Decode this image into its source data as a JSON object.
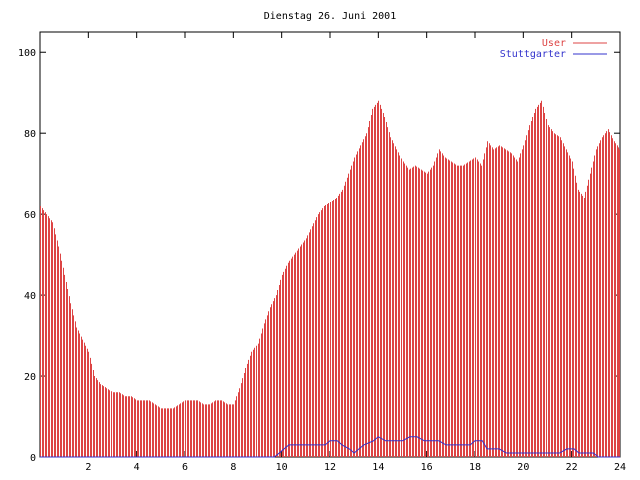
{
  "chart_data": {
    "type": "bar",
    "title": "Dienstag 26. Juni 2001",
    "xlim": [
      0,
      24
    ],
    "ylim": [
      0,
      105
    ],
    "xticks": [
      2,
      4,
      6,
      8,
      10,
      12,
      14,
      16,
      18,
      20,
      22,
      24
    ],
    "yticks": [
      0,
      20,
      40,
      60,
      80,
      100
    ],
    "legend_position": "top-right",
    "colors": {
      "User": "#dd4444",
      "Stuttgarter": "#3333cc"
    },
    "series": [
      {
        "name": "User",
        "style": "impulses",
        "points": [
          [
            0.0,
            62
          ],
          [
            0.25,
            60
          ],
          [
            0.5,
            58
          ],
          [
            0.75,
            52
          ],
          [
            1.0,
            45
          ],
          [
            1.25,
            38
          ],
          [
            1.5,
            32
          ],
          [
            1.75,
            29
          ],
          [
            2.0,
            26
          ],
          [
            2.25,
            20
          ],
          [
            2.5,
            18
          ],
          [
            2.75,
            17
          ],
          [
            3.0,
            16
          ],
          [
            3.25,
            16
          ],
          [
            3.5,
            15
          ],
          [
            3.75,
            15
          ],
          [
            4.0,
            14
          ],
          [
            4.25,
            14
          ],
          [
            4.5,
            14
          ],
          [
            4.75,
            13
          ],
          [
            5.0,
            12
          ],
          [
            5.25,
            12
          ],
          [
            5.5,
            12
          ],
          [
            5.75,
            13
          ],
          [
            6.0,
            14
          ],
          [
            6.25,
            14
          ],
          [
            6.5,
            14
          ],
          [
            6.75,
            13
          ],
          [
            7.0,
            13
          ],
          [
            7.25,
            14
          ],
          [
            7.5,
            14
          ],
          [
            7.75,
            13
          ],
          [
            8.0,
            13
          ],
          [
            8.25,
            17
          ],
          [
            8.5,
            22
          ],
          [
            8.75,
            26
          ],
          [
            9.0,
            28
          ],
          [
            9.25,
            33
          ],
          [
            9.5,
            37
          ],
          [
            9.75,
            40
          ],
          [
            10.0,
            45
          ],
          [
            10.25,
            48
          ],
          [
            10.5,
            50
          ],
          [
            10.75,
            52
          ],
          [
            11.0,
            54
          ],
          [
            11.25,
            57
          ],
          [
            11.5,
            60
          ],
          [
            11.75,
            62
          ],
          [
            12.0,
            63
          ],
          [
            12.25,
            64
          ],
          [
            12.5,
            66
          ],
          [
            12.75,
            70
          ],
          [
            13.0,
            74
          ],
          [
            13.25,
            77
          ],
          [
            13.5,
            80
          ],
          [
            13.75,
            86
          ],
          [
            14.0,
            88
          ],
          [
            14.25,
            84
          ],
          [
            14.5,
            79
          ],
          [
            14.75,
            76
          ],
          [
            15.0,
            73
          ],
          [
            15.25,
            71
          ],
          [
            15.5,
            72
          ],
          [
            15.75,
            71
          ],
          [
            16.0,
            70
          ],
          [
            16.25,
            72
          ],
          [
            16.5,
            76
          ],
          [
            16.75,
            74
          ],
          [
            17.0,
            73
          ],
          [
            17.25,
            72
          ],
          [
            17.5,
            72
          ],
          [
            17.75,
            73
          ],
          [
            18.0,
            74
          ],
          [
            18.25,
            72
          ],
          [
            18.5,
            78
          ],
          [
            18.75,
            76
          ],
          [
            19.0,
            77
          ],
          [
            19.25,
            76
          ],
          [
            19.5,
            75
          ],
          [
            19.75,
            73
          ],
          [
            20.0,
            77
          ],
          [
            20.25,
            82
          ],
          [
            20.5,
            86
          ],
          [
            20.75,
            88
          ],
          [
            21.0,
            82
          ],
          [
            21.25,
            80
          ],
          [
            21.5,
            79
          ],
          [
            21.75,
            76
          ],
          [
            22.0,
            73
          ],
          [
            22.25,
            66
          ],
          [
            22.5,
            64
          ],
          [
            22.75,
            70
          ],
          [
            23.0,
            76
          ],
          [
            23.25,
            79
          ],
          [
            23.5,
            81
          ],
          [
            23.75,
            78
          ],
          [
            24.0,
            76
          ]
        ]
      },
      {
        "name": "Stuttgarter",
        "style": "line",
        "points": [
          [
            0,
            0
          ],
          [
            9.7,
            0
          ],
          [
            9.9,
            1
          ],
          [
            10.1,
            2
          ],
          [
            10.3,
            3
          ],
          [
            11.8,
            3
          ],
          [
            12.0,
            4
          ],
          [
            12.3,
            4
          ],
          [
            12.5,
            3
          ],
          [
            12.8,
            2
          ],
          [
            13.0,
            1
          ],
          [
            13.2,
            2
          ],
          [
            13.4,
            3
          ],
          [
            13.8,
            4
          ],
          [
            14.0,
            5
          ],
          [
            14.3,
            4
          ],
          [
            15.0,
            4
          ],
          [
            15.3,
            5
          ],
          [
            15.6,
            5
          ],
          [
            15.9,
            4
          ],
          [
            16.5,
            4
          ],
          [
            16.8,
            3
          ],
          [
            17.8,
            3
          ],
          [
            18.0,
            4
          ],
          [
            18.3,
            4
          ],
          [
            18.5,
            2
          ],
          [
            19.0,
            2
          ],
          [
            19.3,
            1
          ],
          [
            21.5,
            1
          ],
          [
            21.8,
            2
          ],
          [
            22.1,
            2
          ],
          [
            22.3,
            1
          ],
          [
            22.9,
            1
          ],
          [
            23.1,
            0
          ],
          [
            24.0,
            0
          ]
        ]
      }
    ]
  }
}
